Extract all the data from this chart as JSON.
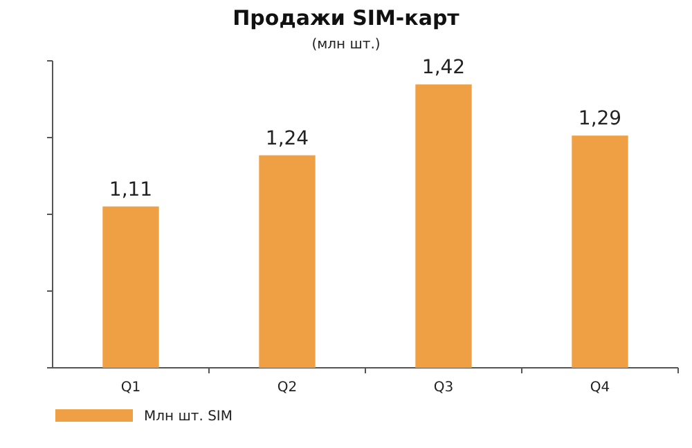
{
  "chart_data": {
    "type": "bar",
    "title": "Продажи SIM-карт",
    "subtitle": "(млн шт.)",
    "categories": [
      "Q1",
      "Q2",
      "Q3",
      "Q4"
    ],
    "series": [
      {
        "name": "Млн шт. SIM",
        "color": "#f0a044",
        "values": [
          1.11,
          1.24,
          1.42,
          1.29
        ],
        "value_labels": [
          "1,11",
          "1,24",
          "1,42",
          "1,29"
        ]
      }
    ],
    "ylim": [
      0.7,
      1.48
    ],
    "yticks": [
      {
        "value": 0.7,
        "label": null
      },
      {
        "value": 0.895,
        "label": null
      },
      {
        "value": 1.09,
        "label": null
      },
      {
        "value": 1.285,
        "label": null
      },
      {
        "value": 1.48,
        "label": null
      }
    ],
    "tick_labels": "x",
    "grid": false,
    "legend": "bottom left"
  }
}
